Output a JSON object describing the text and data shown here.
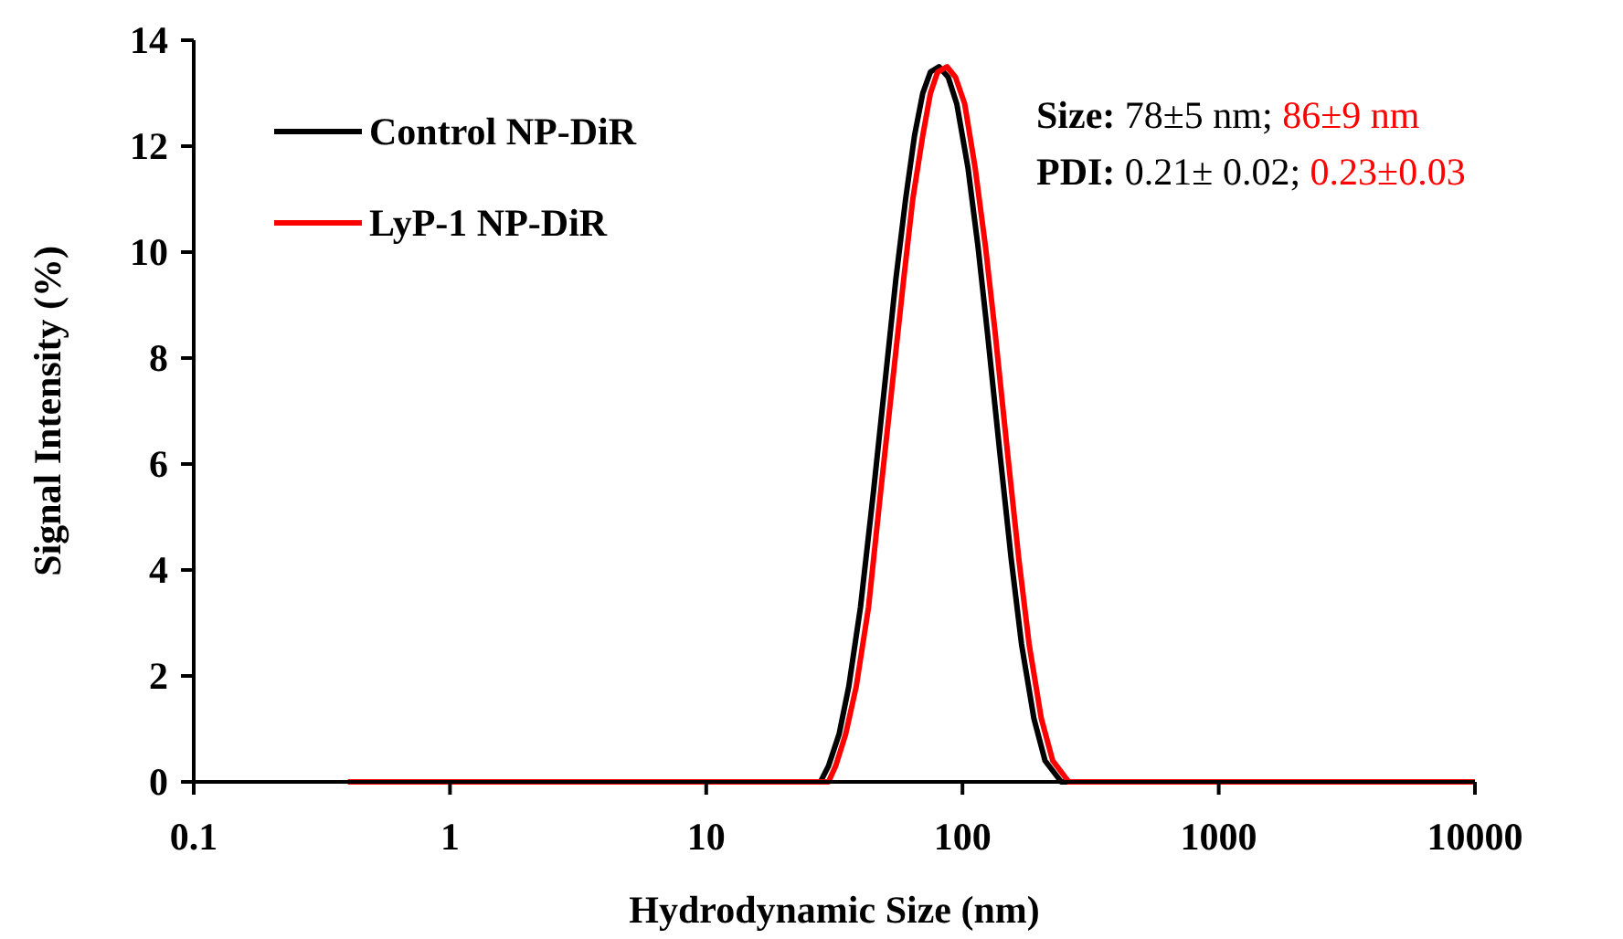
{
  "chart_data": {
    "type": "line",
    "xlabel": "Hydrodynamic Size (nm)",
    "ylabel": "Signal Intensity (%)",
    "log": "x",
    "xlim": [
      0.1,
      10000
    ],
    "xticks": [
      0.1,
      1,
      10,
      100,
      1000,
      10000
    ],
    "ylim": [
      0,
      14
    ],
    "yticks": [
      0,
      2,
      4,
      6,
      8,
      10,
      12,
      14
    ],
    "grid": false,
    "legend": "top left",
    "marker": "none",
    "line_style": "solid",
    "annotations": [
      "Size: 78±5 nm;",
      "86±9 nm",
      "PDI: 0.21± 0.02;",
      "0.23±0.03"
    ],
    "series": [
      {
        "name": "Control NP-DiR",
        "color": "#000000",
        "x": [
          0.4,
          27.9,
          30,
          33,
          36,
          40,
          45,
          50,
          55,
          60,
          65,
          70,
          75,
          81,
          88,
          95,
          105,
          115,
          125,
          140,
          155,
          170,
          190,
          210,
          243,
          10000
        ],
        "values": [
          0,
          0,
          0.3,
          0.9,
          1.8,
          3.3,
          5.5,
          7.6,
          9.5,
          11.0,
          12.2,
          13.0,
          13.4,
          13.5,
          13.3,
          12.8,
          11.6,
          10.1,
          8.5,
          6.2,
          4.2,
          2.6,
          1.2,
          0.4,
          0,
          0
        ]
      },
      {
        "name": "LyP-1 NP-DiR",
        "color": "#ff0000",
        "x": [
          0.4,
          30,
          32,
          35,
          38.5,
          43,
          48,
          53.5,
          59,
          64,
          70,
          75,
          80,
          87,
          94,
          102,
          112,
          123,
          134,
          150,
          166,
          182,
          203,
          225,
          260,
          10000
        ],
        "values": [
          0,
          0,
          0.3,
          0.9,
          1.8,
          3.3,
          5.5,
          7.6,
          9.5,
          11.0,
          12.2,
          13.0,
          13.4,
          13.5,
          13.3,
          12.8,
          11.6,
          10.1,
          8.5,
          6.2,
          4.2,
          2.6,
          1.2,
          0.4,
          0,
          0
        ]
      }
    ]
  }
}
